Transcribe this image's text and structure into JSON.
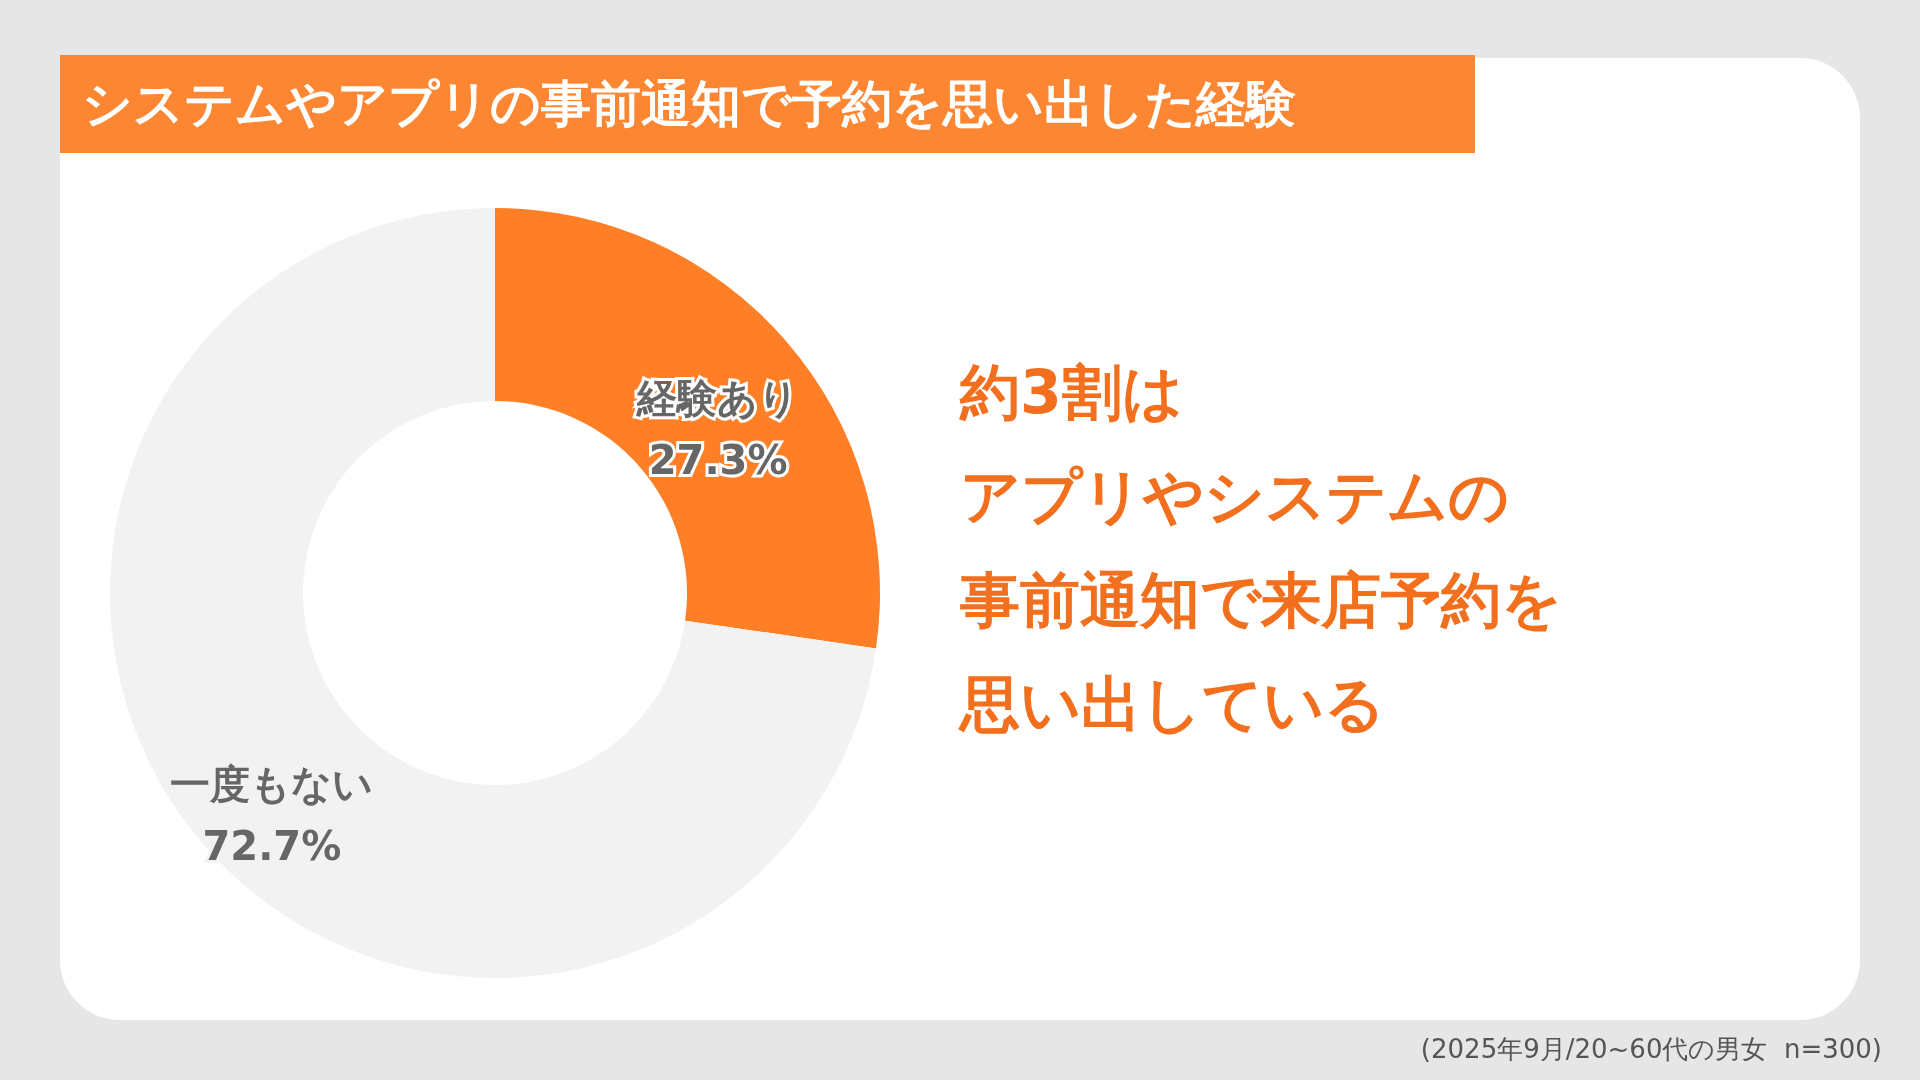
{
  "chart_data": {
    "type": "donut",
    "title": "システムやアプリの事前通知で予約を思い出した経験",
    "categories": [
      "経験あり",
      "一度もない"
    ],
    "values": [
      27.3,
      72.7
    ],
    "colors": [
      "#ff7f27",
      "#f2f2f2"
    ],
    "value_labels": [
      "27.3%",
      "72.7%"
    ],
    "annotations": [
      "約3割は",
      "アプリやシステムの",
      "事前通知で来店予約を",
      "思い出している",
      "(2025年9月/20~60代の男女  n=300)"
    ]
  }
}
